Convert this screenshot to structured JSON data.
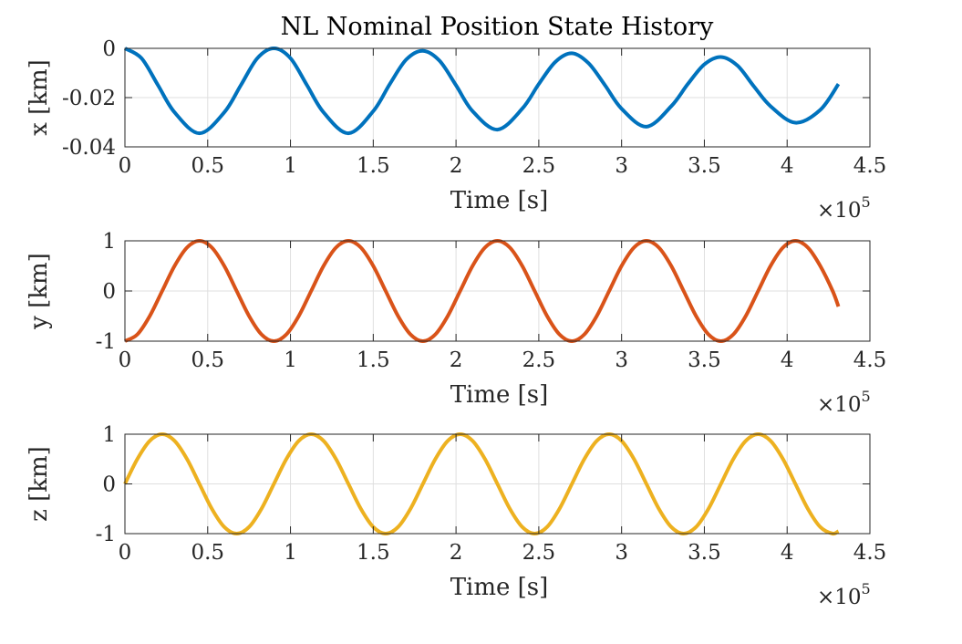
{
  "chart_data": [
    {
      "type": "line",
      "title": "NL Nominal Position State History",
      "xlabel": "Time [s]",
      "ylabel": "x [km]",
      "x_exponent_label": "×10",
      "x_exponent": "5",
      "xlim": [
        0,
        4.5
      ],
      "ylim": [
        -0.04,
        0
      ],
      "xticks": [
        0,
        0.5,
        1,
        1.5,
        2,
        2.5,
        3,
        3.5,
        4,
        4.5
      ],
      "xtick_labels": [
        "0",
        "0.5",
        "1",
        "1.5",
        "2",
        "2.5",
        "3",
        "3.5",
        "4",
        "4.5"
      ],
      "yticks": [
        -0.04,
        -0.02,
        0
      ],
      "ytick_labels": [
        "-0.04",
        "-0.02",
        "0"
      ],
      "grid": true,
      "series": [
        {
          "color": "#0072BD",
          "x": [
            0,
            0.1,
            0.2,
            0.3,
            0.45,
            0.6,
            0.7,
            0.8,
            0.9,
            1.0,
            1.1,
            1.2,
            1.35,
            1.5,
            1.6,
            1.7,
            1.8,
            1.9,
            2.0,
            2.1,
            2.25,
            2.4,
            2.5,
            2.6,
            2.7,
            2.8,
            2.9,
            3.0,
            3.15,
            3.3,
            3.4,
            3.5,
            3.6,
            3.7,
            3.8,
            3.9,
            4.05,
            4.2,
            4.31
          ],
          "y": [
            0,
            -0.004,
            -0.015,
            -0.026,
            -0.0345,
            -0.026,
            -0.015,
            -0.004,
            0,
            -0.004,
            -0.015,
            -0.026,
            -0.0345,
            -0.0255,
            -0.0145,
            -0.0045,
            -0.001,
            -0.005,
            -0.015,
            -0.0255,
            -0.033,
            -0.0245,
            -0.0145,
            -0.0055,
            -0.002,
            -0.006,
            -0.015,
            -0.0245,
            -0.0318,
            -0.0235,
            -0.0145,
            -0.0065,
            -0.0035,
            -0.007,
            -0.0155,
            -0.0235,
            -0.0302,
            -0.025,
            -0.0145
          ]
        }
      ]
    },
    {
      "type": "line",
      "title": "",
      "xlabel": "Time [s]",
      "ylabel": "y [km]",
      "x_exponent_label": "×10",
      "x_exponent": "5",
      "xlim": [
        0,
        4.5
      ],
      "ylim": [
        -1,
        1
      ],
      "xticks": [
        0,
        0.5,
        1,
        1.5,
        2,
        2.5,
        3,
        3.5,
        4,
        4.5
      ],
      "xtick_labels": [
        "0",
        "0.5",
        "1",
        "1.5",
        "2",
        "2.5",
        "3",
        "3.5",
        "4",
        "4.5"
      ],
      "yticks": [
        -1,
        0,
        1
      ],
      "ytick_labels": [
        "-1",
        "0",
        "1"
      ],
      "grid": true,
      "series": [
        {
          "color": "#D95319",
          "x": [
            0,
            0.075,
            0.15,
            0.225,
            0.3,
            0.375,
            0.45,
            0.525,
            0.6,
            0.675,
            0.75,
            0.825,
            0.9,
            0.975,
            1.05,
            1.125,
            1.2,
            1.275,
            1.35,
            1.425,
            1.5,
            1.575,
            1.65,
            1.725,
            1.8,
            1.875,
            1.95,
            2.025,
            2.1,
            2.175,
            2.25,
            2.325,
            2.4,
            2.475,
            2.55,
            2.625,
            2.7,
            2.775,
            2.85,
            2.925,
            3.0,
            3.075,
            3.15,
            3.225,
            3.3,
            3.375,
            3.45,
            3.525,
            3.6,
            3.675,
            3.75,
            3.825,
            3.9,
            3.975,
            4.05,
            4.125,
            4.2,
            4.275,
            4.31
          ],
          "y": [
            -1,
            -0.866,
            -0.5,
            0,
            0.5,
            0.866,
            1,
            0.866,
            0.5,
            0,
            -0.5,
            -0.866,
            -1,
            -0.866,
            -0.5,
            0,
            0.5,
            0.866,
            1,
            0.866,
            0.5,
            0,
            -0.5,
            -0.866,
            -1,
            -0.866,
            -0.5,
            0,
            0.5,
            0.866,
            1,
            0.866,
            0.5,
            0,
            -0.5,
            -0.866,
            -1,
            -0.866,
            -0.5,
            0,
            0.5,
            0.866,
            1,
            0.866,
            0.5,
            0,
            -0.5,
            -0.866,
            -1,
            -0.866,
            -0.5,
            0,
            0.5,
            0.866,
            1,
            0.866,
            0.5,
            0,
            -0.31
          ]
        }
      ]
    },
    {
      "type": "line",
      "title": "",
      "xlabel": "Time [s]",
      "ylabel": "z [km]",
      "x_exponent_label": "×10",
      "x_exponent": "5",
      "xlim": [
        0,
        4.5
      ],
      "ylim": [
        -1,
        1
      ],
      "xticks": [
        0,
        0.5,
        1,
        1.5,
        2,
        2.5,
        3,
        3.5,
        4,
        4.5
      ],
      "xtick_labels": [
        "0",
        "0.5",
        "1",
        "1.5",
        "2",
        "2.5",
        "3",
        "3.5",
        "4",
        "4.5"
      ],
      "yticks": [
        -1,
        0,
        1
      ],
      "ytick_labels": [
        "-1",
        "0",
        "1"
      ],
      "grid": true,
      "series": [
        {
          "color": "#EDB120",
          "x": [
            0,
            0.075,
            0.15,
            0.225,
            0.3,
            0.375,
            0.45,
            0.525,
            0.6,
            0.675,
            0.75,
            0.825,
            0.9,
            0.975,
            1.05,
            1.125,
            1.2,
            1.275,
            1.35,
            1.425,
            1.5,
            1.575,
            1.65,
            1.725,
            1.8,
            1.875,
            1.95,
            2.025,
            2.1,
            2.175,
            2.25,
            2.325,
            2.4,
            2.475,
            2.55,
            2.625,
            2.7,
            2.775,
            2.85,
            2.925,
            3.0,
            3.075,
            3.15,
            3.225,
            3.3,
            3.375,
            3.45,
            3.525,
            3.6,
            3.675,
            3.75,
            3.825,
            3.9,
            3.975,
            4.05,
            4.125,
            4.2,
            4.275,
            4.31
          ],
          "y": [
            0,
            0.5,
            0.866,
            1,
            0.866,
            0.5,
            0,
            -0.5,
            -0.866,
            -1,
            -0.866,
            -0.5,
            0,
            0.5,
            0.866,
            1,
            0.866,
            0.5,
            0,
            -0.5,
            -0.866,
            -1,
            -0.866,
            -0.5,
            0,
            0.5,
            0.866,
            1,
            0.866,
            0.5,
            0,
            -0.5,
            -0.866,
            -1,
            -0.866,
            -0.5,
            0,
            0.5,
            0.866,
            1,
            0.866,
            0.5,
            0,
            -0.5,
            -0.866,
            -1,
            -0.866,
            -0.5,
            0,
            0.5,
            0.866,
            1,
            0.866,
            0.5,
            0,
            -0.5,
            -0.866,
            -1,
            -0.95
          ]
        }
      ]
    }
  ]
}
